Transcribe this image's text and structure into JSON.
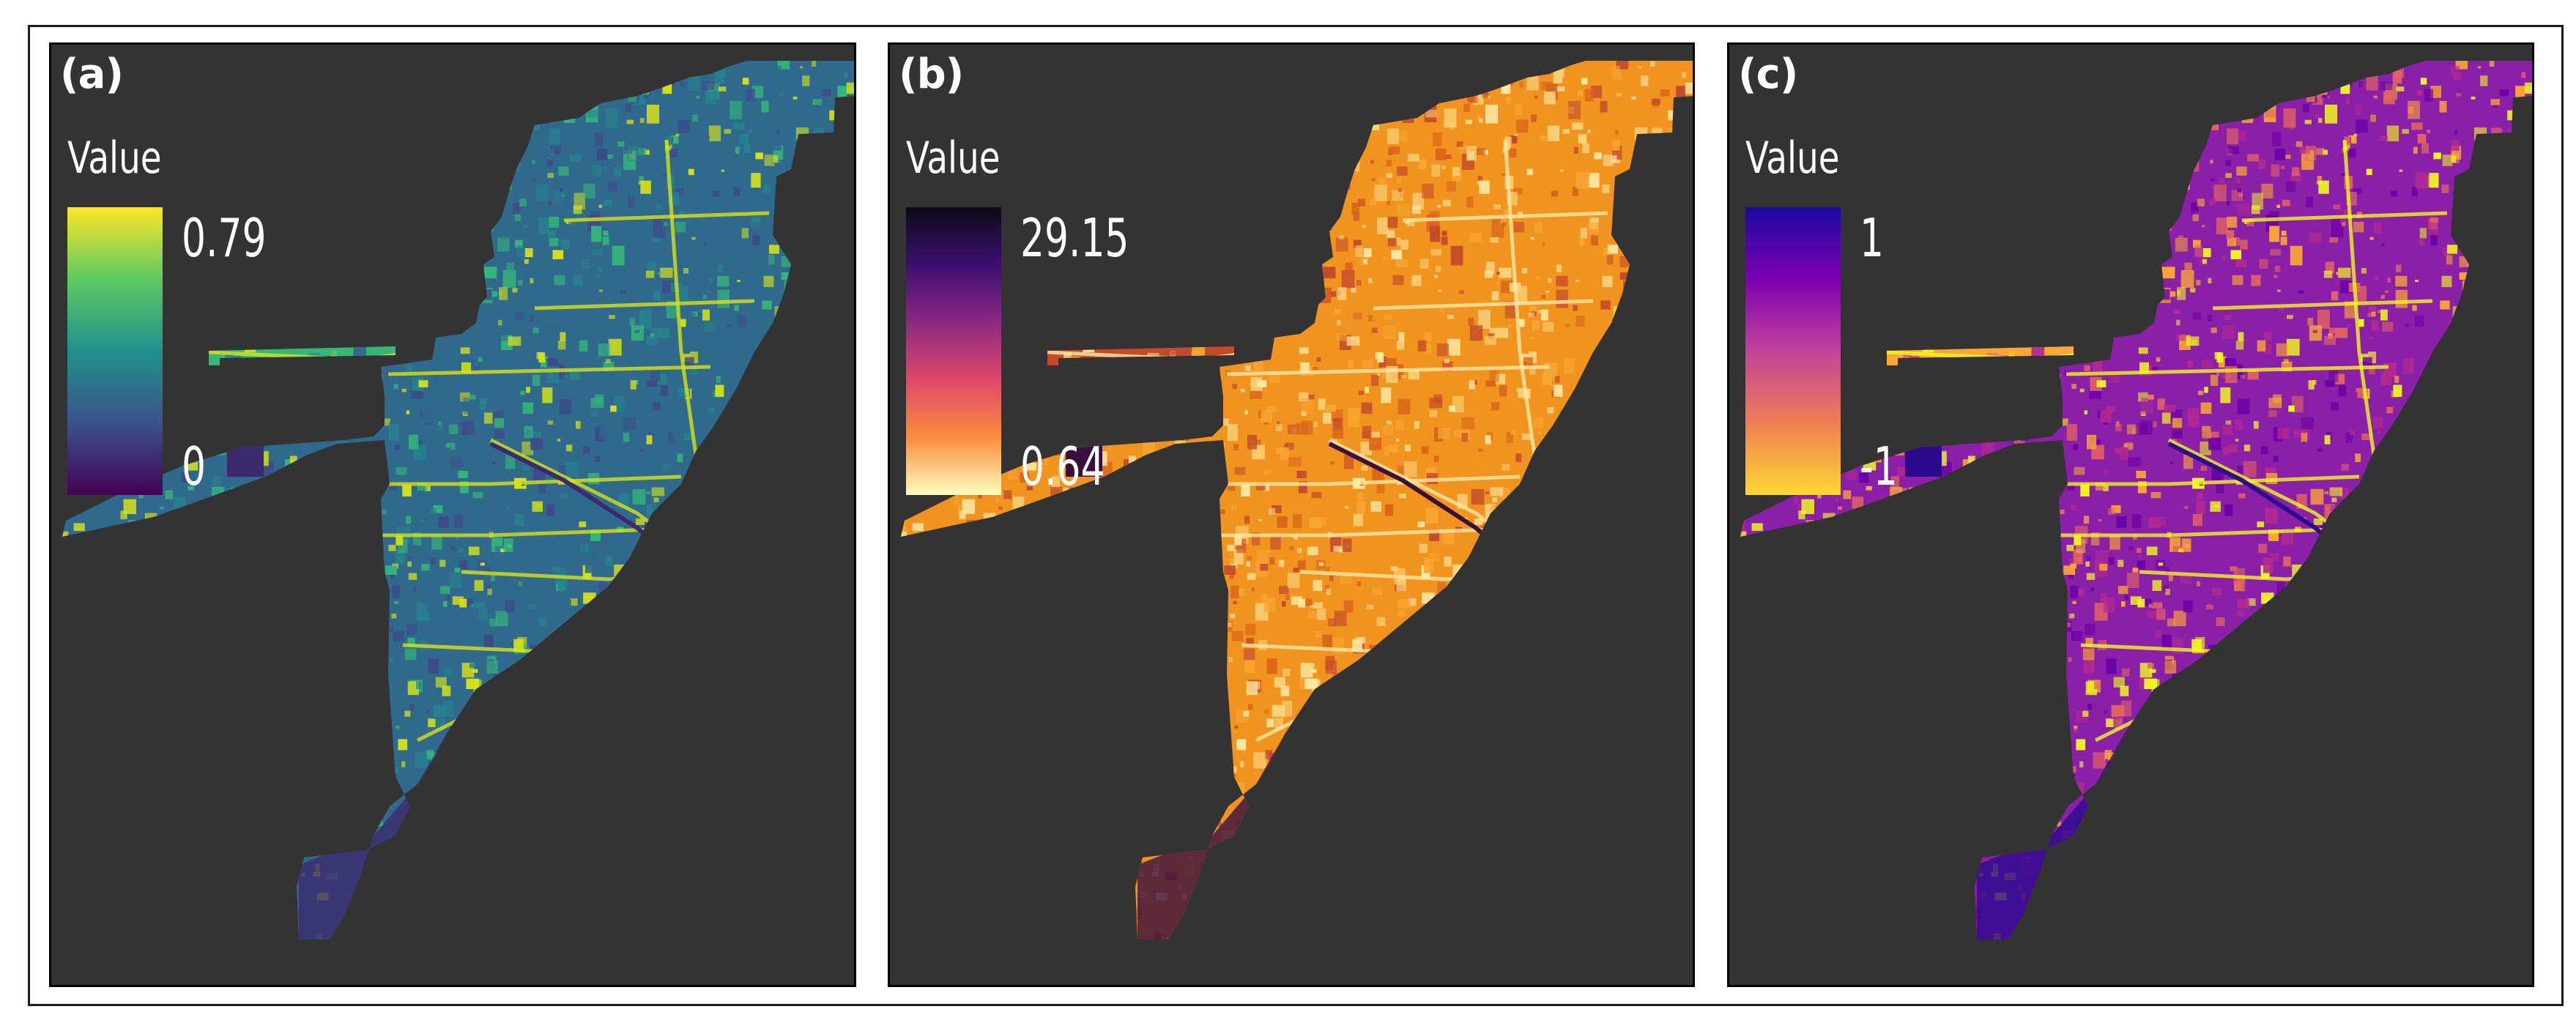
{
  "panels": [
    {
      "label": "(a)",
      "legend_title": "Value",
      "max": "0.79",
      "min": "0",
      "colormap": "viridis",
      "colors": [
        "#fde725",
        "#5ec962",
        "#21918c",
        "#3b528b",
        "#440154"
      ],
      "base_fill": "#2f6a8c",
      "accent_fills": [
        "#3e4a89",
        "#31688e",
        "#26828e",
        "#35b779",
        "#d8e219"
      ],
      "dark_fill": "#3b2a6e"
    },
    {
      "label": "(b)",
      "legend_title": "Value",
      "max": "29.15",
      "min": "0.64",
      "colormap": "inferno-reversed",
      "colors": [
        "#0a0a14",
        "#3b0f70",
        "#8c2981",
        "#de4968",
        "#fb8d3d",
        "#fcfdbf"
      ],
      "base_fill": "#f0931f",
      "accent_fills": [
        "#d9641a",
        "#f7a534",
        "#fcd27a",
        "#c44a2a",
        "#fde9a4"
      ],
      "dark_fill": "#3a0f3f"
    },
    {
      "label": "(c)",
      "legend_title": "Value",
      "max": "1",
      "min": "-1",
      "colormap": "plasma-reversed",
      "colors": [
        "#1a0aa0",
        "#7c00b0",
        "#c2439a",
        "#f07f53",
        "#fdd835"
      ],
      "base_fill": "#8a1fa8",
      "accent_fills": [
        "#6a00a8",
        "#b12a90",
        "#e16462",
        "#fca636",
        "#f0f921"
      ],
      "dark_fill": "#2b0a8e"
    }
  ]
}
